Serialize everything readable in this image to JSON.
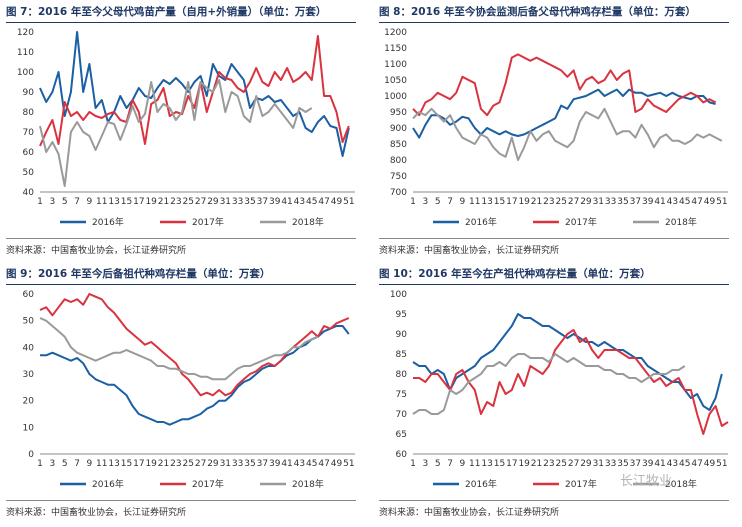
{
  "colors": {
    "s2016": "#1b5fa4",
    "s2017": "#d9333f",
    "s2018": "#9a9a9a",
    "title": "#1f3864"
  },
  "watermark": "长江牧业",
  "chart_data": [
    {
      "id": "p7",
      "type": "line",
      "title": "图 7：2016 年至今父母代鸡苗产量（自用+外销量）（单位：万套）",
      "source": "资料来源：中国畜牧业协会，长江证券研究所",
      "xlabel": "",
      "ylabel": "",
      "ylim": [
        40,
        120
      ],
      "ystep": 10,
      "xmax": 52,
      "x_ticks": [
        "1",
        "3",
        "5",
        "7",
        "9",
        "11",
        "13",
        "15",
        "17",
        "19",
        "21",
        "23",
        "25",
        "27",
        "29",
        "31",
        "33",
        "35",
        "37",
        "39",
        "41",
        "43",
        "45",
        "47",
        "49",
        "51"
      ],
      "legend": [
        "2016年",
        "2017年",
        "2018年"
      ],
      "series": [
        {
          "name": "2016年",
          "values": [
            92,
            85,
            90,
            100,
            78,
            90,
            120,
            90,
            104,
            82,
            86,
            75,
            80,
            88,
            82,
            86,
            92,
            88,
            87,
            92,
            96,
            94,
            97,
            94,
            90,
            95,
            98,
            88,
            104,
            98,
            96,
            104,
            100,
            96,
            82,
            87,
            86,
            88,
            85,
            86,
            82,
            78,
            80,
            72,
            70,
            75,
            78,
            73,
            72,
            58,
            72
          ]
        },
        {
          "name": "2017年",
          "values": [
            63,
            70,
            76,
            64,
            85,
            78,
            80,
            76,
            80,
            78,
            77,
            79,
            80,
            76,
            75,
            86,
            80,
            64,
            84,
            86,
            92,
            78,
            80,
            79,
            88,
            82,
            95,
            80,
            90,
            100,
            97,
            96,
            92,
            90,
            95,
            102,
            95,
            93,
            100,
            96,
            102,
            95,
            97,
            100,
            96,
            118,
            88,
            88,
            80,
            65,
            73
          ]
        },
        {
          "name": "2018年",
          "values": [
            73,
            60,
            65,
            59,
            43,
            70,
            75,
            70,
            68,
            61,
            68,
            75,
            74,
            66,
            74,
            83,
            75,
            79,
            95,
            80,
            84,
            82,
            76,
            80,
            95,
            76,
            95,
            92,
            90,
            96,
            80,
            90,
            88,
            78,
            75,
            88,
            78,
            80,
            84,
            80,
            76,
            72,
            82,
            80,
            82
          ]
        }
      ]
    },
    {
      "id": "p8",
      "type": "line",
      "title": "图 8：2016 年至今协会监测后备父母代种鸡存栏量（单位：万套）",
      "source": "资料来源：中国畜牧业协会，长江证券研究所",
      "xlabel": "",
      "ylabel": "",
      "ylim": [
        700,
        1200
      ],
      "ystep": 50,
      "xmax": 52,
      "x_ticks": [
        "1",
        "3",
        "5",
        "7",
        "9",
        "11",
        "13",
        "15",
        "17",
        "19",
        "21",
        "23",
        "25",
        "27",
        "29",
        "31",
        "33",
        "35",
        "37",
        "39",
        "41",
        "43",
        "45",
        "47",
        "49",
        "51"
      ],
      "legend": [
        "2016年",
        "2017年",
        "2018年"
      ],
      "series": [
        {
          "name": "2016年",
          "values": [
            900,
            870,
            910,
            940,
            940,
            930,
            910,
            920,
            935,
            930,
            900,
            880,
            900,
            890,
            880,
            890,
            880,
            875,
            880,
            890,
            900,
            910,
            920,
            930,
            970,
            960,
            990,
            995,
            1000,
            1010,
            1020,
            1000,
            1010,
            1020,
            1000,
            1020,
            1010,
            1010,
            1000,
            1005,
            1010,
            1000,
            1010,
            1000,
            995,
            990,
            1000,
            1000,
            980,
            975
          ]
        },
        {
          "name": "2017年",
          "values": [
            960,
            940,
            980,
            990,
            1010,
            1000,
            990,
            1010,
            1060,
            1050,
            1040,
            960,
            940,
            970,
            980,
            1040,
            1120,
            1130,
            1120,
            1110,
            1120,
            1110,
            1100,
            1090,
            1080,
            1060,
            1080,
            1020,
            1050,
            1060,
            1040,
            1050,
            1080,
            1050,
            1070,
            1080,
            950,
            960,
            990,
            970,
            960,
            950,
            970,
            990,
            1000,
            1010,
            1000,
            980,
            990,
            980
          ]
        },
        {
          "name": "2018年",
          "values": [
            930,
            950,
            940,
            960,
            940,
            920,
            940,
            900,
            870,
            860,
            850,
            880,
            870,
            840,
            820,
            810,
            870,
            800,
            840,
            890,
            860,
            880,
            890,
            860,
            850,
            840,
            860,
            920,
            950,
            940,
            930,
            960,
            920,
            880,
            890,
            890,
            870,
            910,
            880,
            840,
            870,
            880,
            860,
            860,
            850,
            860,
            880,
            870,
            880,
            870,
            860
          ]
        }
      ]
    },
    {
      "id": "p9",
      "type": "line",
      "title": "图 9：2016 年至今后备祖代种鸡存栏量（单位：万套）",
      "source": "资料来源：中国畜牧业协会，长江证券研究所",
      "xlabel": "",
      "ylabel": "",
      "ylim": [
        0,
        60
      ],
      "ystep": 10,
      "xmax": 52,
      "x_ticks": [
        "1",
        "3",
        "5",
        "7",
        "9",
        "11",
        "13",
        "15",
        "17",
        "19",
        "21",
        "23",
        "25",
        "27",
        "29",
        "31",
        "33",
        "35",
        "37",
        "39",
        "41",
        "43",
        "45",
        "47",
        "49",
        "51"
      ],
      "legend": [
        "2016年",
        "2017年",
        "2018年"
      ],
      "series": [
        {
          "name": "2016年",
          "values": [
            37,
            37,
            38,
            37,
            36,
            35,
            36,
            34,
            30,
            28,
            27,
            26,
            26,
            24,
            22,
            18,
            15,
            14,
            13,
            12,
            12,
            11,
            12,
            13,
            13,
            14,
            15,
            17,
            18,
            20,
            20,
            22,
            25,
            27,
            28,
            30,
            32,
            33,
            33,
            35,
            37,
            38,
            40,
            41,
            43,
            44,
            46,
            47,
            48,
            48,
            45
          ]
        },
        {
          "name": "2017年",
          "values": [
            54,
            55,
            52,
            55,
            58,
            57,
            58,
            56,
            60,
            59,
            58,
            55,
            53,
            50,
            47,
            45,
            43,
            41,
            42,
            40,
            38,
            36,
            34,
            30,
            28,
            25,
            22,
            23,
            22,
            24,
            22,
            23,
            26,
            28,
            30,
            31,
            33,
            34,
            33,
            35,
            38,
            40,
            42,
            44,
            46,
            44,
            48,
            47,
            49,
            50,
            51
          ]
        },
        {
          "name": "2018年",
          "values": [
            51,
            50,
            48,
            46,
            44,
            40,
            38,
            37,
            36,
            35,
            36,
            37,
            38,
            38,
            39,
            38,
            37,
            36,
            35,
            33,
            33,
            32,
            32,
            31,
            30,
            30,
            29,
            29,
            28,
            28,
            28,
            30,
            32,
            33,
            33,
            34,
            35,
            36,
            37,
            37,
            38,
            40,
            40,
            42,
            43,
            44
          ]
        }
      ]
    },
    {
      "id": "p10",
      "type": "line",
      "title": "图 10：2016 年至今在产祖代种鸡存栏量（单位：万套）",
      "source": "资料来源：中国畜牧业协会，长江证券研究所",
      "xlabel": "",
      "ylabel": "",
      "ylim": [
        60,
        100
      ],
      "ystep": 5,
      "xmax": 52,
      "x_ticks": [
        "1",
        "3",
        "5",
        "7",
        "9",
        "11",
        "13",
        "15",
        "17",
        "19",
        "21",
        "23",
        "25",
        "27",
        "29",
        "31",
        "33",
        "35",
        "37",
        "39",
        "41",
        "43",
        "45",
        "47",
        "49",
        "51"
      ],
      "legend": [
        "2016年",
        "2017年",
        "2018年"
      ],
      "series": [
        {
          "name": "2016年",
          "values": [
            83,
            82,
            82,
            80,
            81,
            80,
            76,
            79,
            80,
            81,
            82,
            84,
            85,
            86,
            88,
            90,
            92,
            95,
            94,
            94,
            93,
            92,
            92,
            91,
            90,
            89,
            90,
            89,
            88,
            88,
            87,
            88,
            87,
            86,
            86,
            85,
            84,
            84,
            82,
            81,
            80,
            79,
            78,
            78,
            76,
            74,
            75,
            72,
            71,
            74,
            80
          ]
        },
        {
          "name": "2017年",
          "values": [
            79,
            79,
            78,
            80,
            80,
            78,
            76,
            80,
            81,
            78,
            76,
            70,
            73,
            72,
            78,
            75,
            76,
            80,
            77,
            82,
            81,
            80,
            82,
            86,
            88,
            90,
            91,
            88,
            89,
            86,
            84,
            86,
            86,
            86,
            85,
            84,
            84,
            82,
            80,
            78,
            79,
            77,
            78,
            79,
            76,
            76,
            70,
            65,
            70,
            72,
            67,
            68
          ]
        },
        {
          "name": "2018年",
          "values": [
            70,
            71,
            71,
            70,
            70,
            71,
            76,
            75,
            76,
            78,
            79,
            80,
            82,
            82,
            83,
            82,
            84,
            85,
            85,
            84,
            84,
            84,
            83,
            85,
            84,
            83,
            84,
            83,
            82,
            82,
            82,
            81,
            81,
            80,
            80,
            79,
            79,
            78,
            79,
            80,
            80,
            80,
            81,
            81,
            82
          ]
        }
      ]
    }
  ]
}
